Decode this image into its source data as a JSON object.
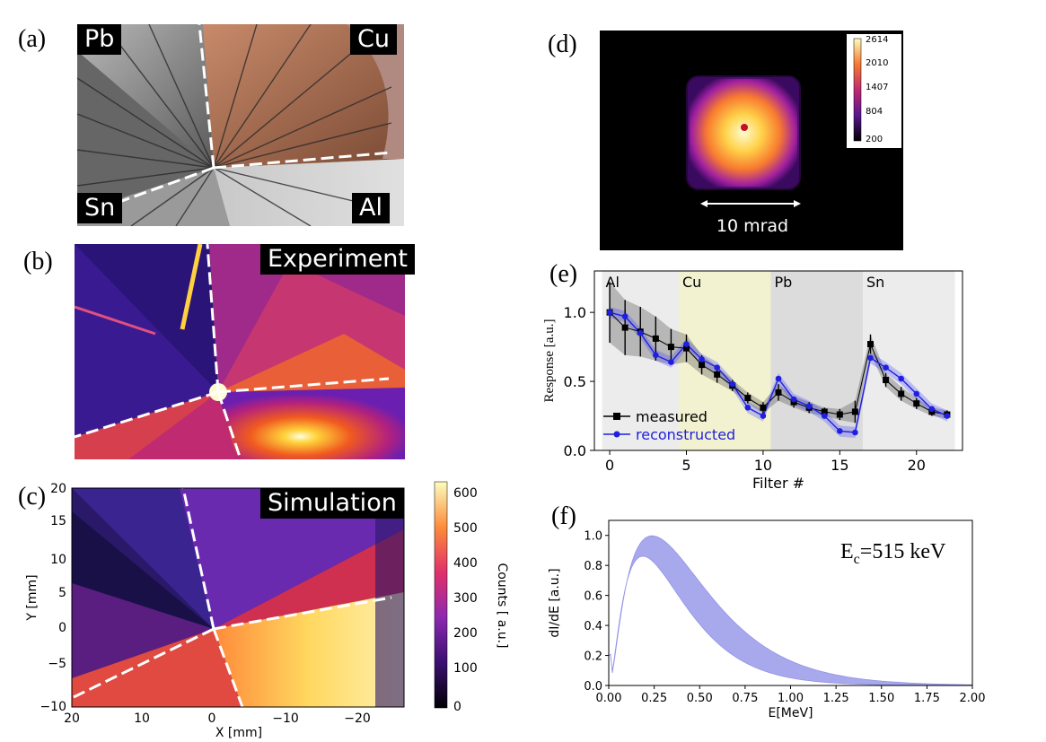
{
  "panel_labels": [
    "(a)",
    "(b)",
    "(c)",
    "(d)",
    "(e)",
    "(f)"
  ],
  "panel_a": {
    "labels": [
      "Pb",
      "Cu",
      "Sn",
      "Al"
    ]
  },
  "panel_b": {
    "label": "Experiment"
  },
  "panel_c": {
    "label": "Simulation",
    "xlabel": "X [mm]",
    "ylabel": "Y [mm]",
    "x_ticks": [
      "20",
      "10",
      "0",
      "−10",
      "−20"
    ],
    "y_ticks": [
      "20",
      "15",
      "10",
      "5",
      "0",
      "−5",
      "−10"
    ],
    "colorbar_label": "Counts [ a.u.]",
    "colorbar_ticks": [
      "600",
      "500",
      "400",
      "300",
      "200",
      "100",
      "0"
    ]
  },
  "panel_d": {
    "scale_label": "10 mrad",
    "colorbar_ticks": [
      "2614",
      "2010",
      "1407",
      "804",
      "200"
    ]
  },
  "chart_data": [
    {
      "type": "line",
      "xlabel": "Filter #",
      "ylabel": "Response [a.u.]",
      "xlim": [
        -1,
        23
      ],
      "ylim": [
        0,
        1.3
      ],
      "x_ticks": [
        "0",
        "5",
        "10",
        "15",
        "20"
      ],
      "y_ticks": [
        "0.0",
        "0.5",
        "1.0"
      ],
      "regions": [
        {
          "name": "Al",
          "from": -0.5,
          "to": 4.5,
          "color": "#ececec"
        },
        {
          "name": "Cu",
          "from": 4.5,
          "to": 10.5,
          "color": "#f2f2d0"
        },
        {
          "name": "Pb",
          "from": 10.5,
          "to": 16.5,
          "color": "#dcdcdc"
        },
        {
          "name": "Sn",
          "from": 16.5,
          "to": 22.5,
          "color": "#ececec"
        }
      ],
      "series": [
        {
          "name": "measured",
          "color": "#000000",
          "x": [
            0,
            1,
            2,
            3,
            4,
            5,
            6,
            7,
            8,
            9,
            10,
            11,
            12,
            13,
            14,
            15,
            16,
            17,
            18,
            19,
            20,
            21,
            22
          ],
          "y": [
            1.0,
            0.89,
            0.86,
            0.81,
            0.75,
            0.74,
            0.62,
            0.55,
            0.47,
            0.38,
            0.31,
            0.42,
            0.35,
            0.31,
            0.28,
            0.26,
            0.28,
            0.77,
            0.51,
            0.41,
            0.34,
            0.28,
            0.26
          ],
          "err": [
            0.22,
            0.2,
            0.18,
            0.16,
            0.13,
            0.1,
            0.07,
            0.06,
            0.04,
            0.04,
            0.04,
            0.06,
            0.04,
            0.04,
            0.03,
            0.04,
            0.08,
            0.07,
            0.05,
            0.05,
            0.04,
            0.03,
            0.03
          ]
        },
        {
          "name": "reconstructed",
          "color": "#1f1fe0",
          "x": [
            0,
            1,
            2,
            3,
            4,
            5,
            6,
            7,
            8,
            9,
            10,
            11,
            12,
            13,
            14,
            15,
            16,
            17,
            18,
            19,
            20,
            21,
            22
          ],
          "y": [
            1.0,
            0.97,
            0.85,
            0.69,
            0.64,
            0.77,
            0.66,
            0.6,
            0.48,
            0.31,
            0.25,
            0.52,
            0.37,
            0.32,
            0.25,
            0.14,
            0.13,
            0.67,
            0.6,
            0.52,
            0.41,
            0.3,
            0.25
          ]
        }
      ]
    },
    {
      "type": "area",
      "xlabel": "E[MeV]",
      "ylabel": "dI/dE [a.u.]",
      "annotation": "E",
      "annotation_sub": "c",
      "annotation_rest": "=515 keV",
      "xlim": [
        0,
        2.0
      ],
      "ylim": [
        0,
        1.1
      ],
      "x_ticks": [
        "0.00",
        "0.25",
        "0.50",
        "0.75",
        "1.00",
        "1.25",
        "1.50",
        "1.75",
        "2.00"
      ],
      "y_ticks": [
        "0.0",
        "0.2",
        "0.4",
        "0.6",
        "0.8",
        "1.0"
      ],
      "color": "#8c8ce8",
      "band_upper": {
        "e0": 0.235,
        "peak": 1.0
      },
      "band_lower": {
        "e0": 0.18,
        "peak": 0.87
      }
    }
  ]
}
